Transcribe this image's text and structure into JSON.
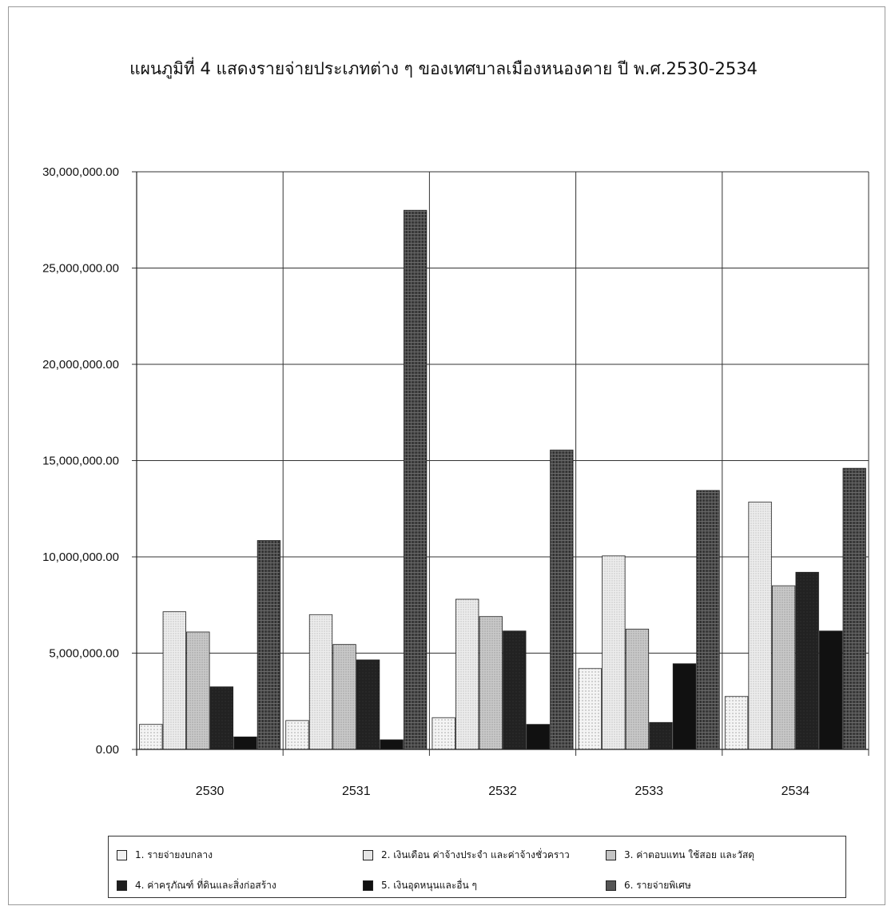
{
  "chart_data": {
    "type": "bar",
    "title": "แผนภูมิที่ 4 แสดงรายจ่ายประเภทต่าง ๆ ของเทศบาลเมืองหนองคาย ปี พ.ศ.2530-2534",
    "categories": [
      "2530",
      "2531",
      "2532",
      "2533",
      "2534"
    ],
    "ylim": [
      0,
      30000000
    ],
    "yticks": [
      "0.00",
      "5,000,000.00",
      "10,000,000.00",
      "15,000,000.00",
      "20,000,000.00",
      "25,000,000.00",
      "30,000,000.00"
    ],
    "ytick_values": [
      0,
      5000000,
      10000000,
      15000000,
      20000000,
      25000000,
      30000000
    ],
    "grid": true,
    "legend_position": "bottom",
    "series": [
      {
        "name": "1. รายจ่ายงบกลาง",
        "color": "#ececec",
        "pattern": "dots-light",
        "values": [
          1300000,
          1500000,
          1650000,
          4200000,
          2750000
        ]
      },
      {
        "name": "2. เงินเดือน ค่าจ้างประจำ และค่าจ้างชั่วคราว",
        "color": "#e4e4e4",
        "pattern": "dots-fine",
        "values": [
          7150000,
          7000000,
          7800000,
          10050000,
          12850000
        ]
      },
      {
        "name": "3. ค่าตอบแทน ใช้สอย และวัสดุ",
        "color": "#bdbdbd",
        "pattern": "dots-gray",
        "values": [
          6100000,
          5450000,
          6900000,
          6250000,
          8500000
        ]
      },
      {
        "name": "4. ค่าครุภัณฑ์ ที่ดินและสิ่งก่อสร้าง",
        "color": "#1e1e1e",
        "pattern": "solid-dark",
        "values": [
          3250000,
          4650000,
          6150000,
          1400000,
          9200000
        ]
      },
      {
        "name": "5. เงินอุดหนุนและอื่น ๆ",
        "color": "#111111",
        "pattern": "solid-black",
        "values": [
          650000,
          500000,
          1300000,
          4450000,
          6150000
        ]
      },
      {
        "name": "6. รายจ่ายพิเศษ",
        "color": "#5a5a5a",
        "pattern": "stripes-dark",
        "values": [
          10850000,
          28000000,
          15550000,
          13450000,
          14600000
        ]
      }
    ]
  }
}
